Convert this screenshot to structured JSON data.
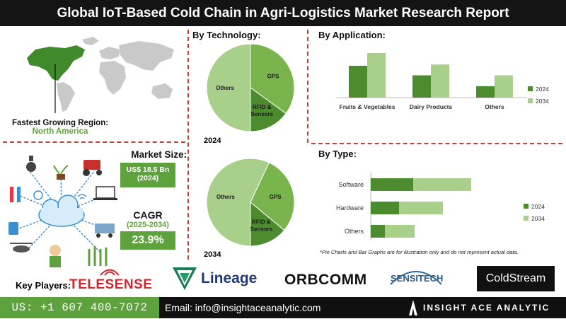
{
  "title": "Global IoT-Based Cold Chain in Agri-Logistics Market Research Report",
  "region": {
    "label": "Fastest Growing Region:",
    "value": "North America"
  },
  "market_size": {
    "label": "Market Size:",
    "value": "US$ 18.5 Bn",
    "year": "(2024)"
  },
  "cagr": {
    "label": "CAGR",
    "period": "(2025-2034)",
    "value": "23.9%"
  },
  "sections": {
    "technology": "By Technology:",
    "application": "By Application:",
    "type": "By Type:"
  },
  "note": "*Pie Charts and Bar Graphs are for illustration only and do not represent actual data.",
  "key_players_label": "Key Players:",
  "players": [
    "TELESENSE",
    "Lineage",
    "ORBCOMM",
    "SENSITECH",
    "ColdStream"
  ],
  "footer": {
    "phone": "US: +1 607 400-7072",
    "email": "Email: info@insightaceanalytic.com",
    "brand": "INSIGHT ACE ANALYTIC"
  },
  "colors": {
    "dark_green": "#4c8c2f",
    "mid_green": "#79b44c",
    "light_green": "#a8d08a",
    "accent": "#5ea23d"
  },
  "chart_data": [
    {
      "type": "pie",
      "year": "2024",
      "slices": [
        {
          "label": "Others",
          "value": 50,
          "color": "#a8d08a"
        },
        {
          "label": "GPS",
          "value": 35,
          "color": "#79b44c"
        },
        {
          "label": "RFID & Sensors",
          "value": 15,
          "color": "#4c8c2f"
        }
      ]
    },
    {
      "type": "pie",
      "year": "2034",
      "slices": [
        {
          "label": "Others",
          "value": 57,
          "color": "#a8d08a"
        },
        {
          "label": "GPS",
          "value": 29,
          "color": "#79b44c"
        },
        {
          "label": "RFID & Sensors",
          "value": 14,
          "color": "#4c8c2f"
        }
      ]
    },
    {
      "type": "bar",
      "categories": [
        "Fruits & Vegetables",
        "Dairy Products",
        "Others"
      ],
      "series": [
        {
          "name": "2024",
          "values": [
            50,
            35,
            18
          ],
          "color": "#4c8c2f"
        },
        {
          "name": "2034",
          "values": [
            70,
            52,
            35
          ],
          "color": "#a8d08a"
        }
      ]
    },
    {
      "type": "bar",
      "orientation": "horizontal",
      "categories": [
        "Software",
        "Hardware",
        "Others"
      ],
      "series": [
        {
          "name": "2024",
          "values": [
            60,
            40,
            20
          ],
          "color": "#4c8c2f"
        },
        {
          "name": "2034",
          "values": [
            142,
            102,
            62
          ],
          "color": "#a8d08a"
        }
      ]
    }
  ]
}
